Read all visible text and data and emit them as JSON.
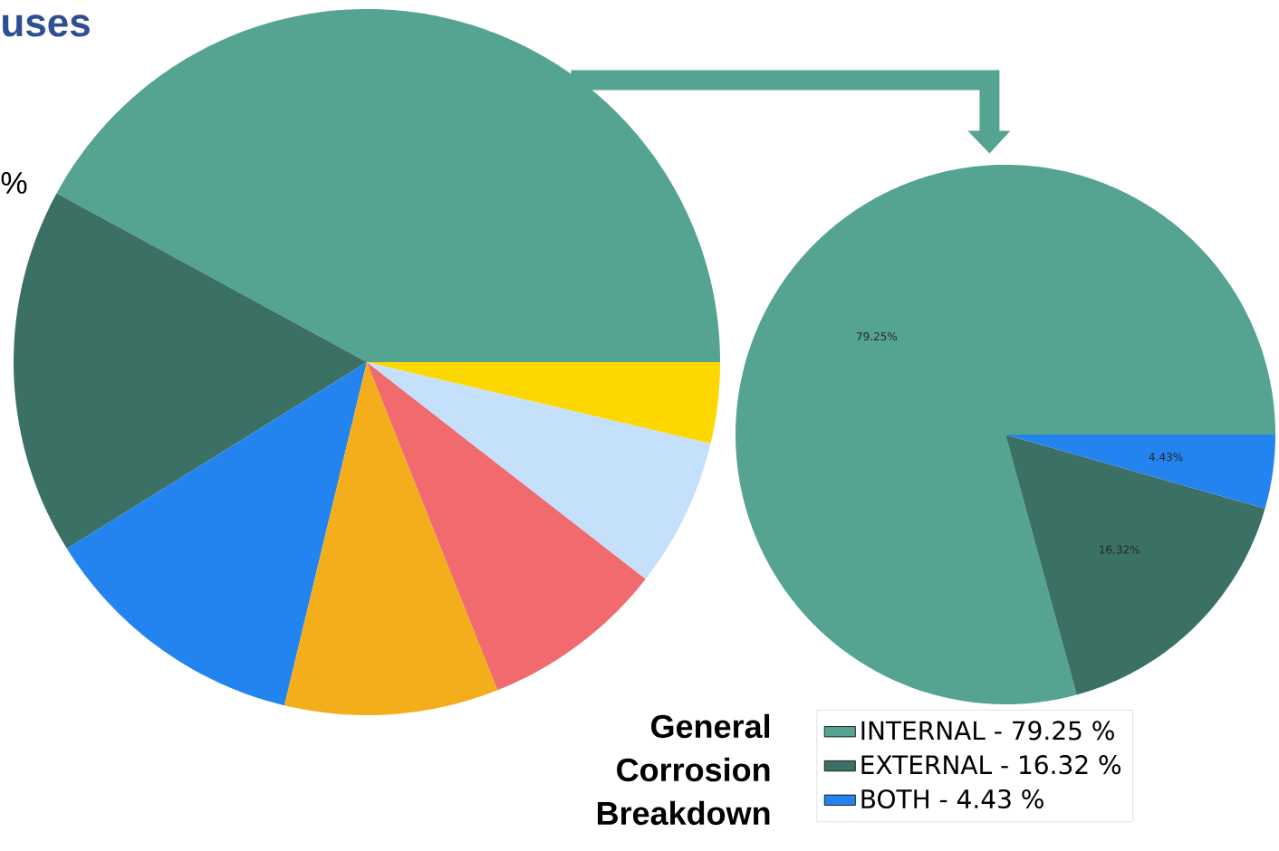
{
  "chart_data": [
    {
      "type": "pie",
      "title": "uses",
      "annotations": [
        "%"
      ],
      "categories": [
        null,
        null,
        null,
        null,
        null,
        null,
        null
      ],
      "values": [
        42.06,
        16.8,
        12.39,
        9.78,
        8.44,
        6.83,
        3.7
      ],
      "colors": [
        "#55a391",
        "#3a7164",
        "#2384f0",
        "#f5ae1b",
        "#f06a6e",
        "#c5e0fa",
        "#fdd700"
      ]
    },
    {
      "type": "pie",
      "title": "General Corrosion Breakdown",
      "categories": [
        "INTERNAL - 79.25 %",
        "EXTERNAL - 16.32 %",
        "BOTH - 4.43 %"
      ],
      "values": [
        79.25,
        16.32,
        4.43
      ],
      "value_labels": [
        "79.25%",
        "16.32%",
        "4.43%"
      ],
      "colors": [
        "#55a391",
        "#3a7164",
        "#2384f0"
      ],
      "legend": "bottom left"
    }
  ]
}
